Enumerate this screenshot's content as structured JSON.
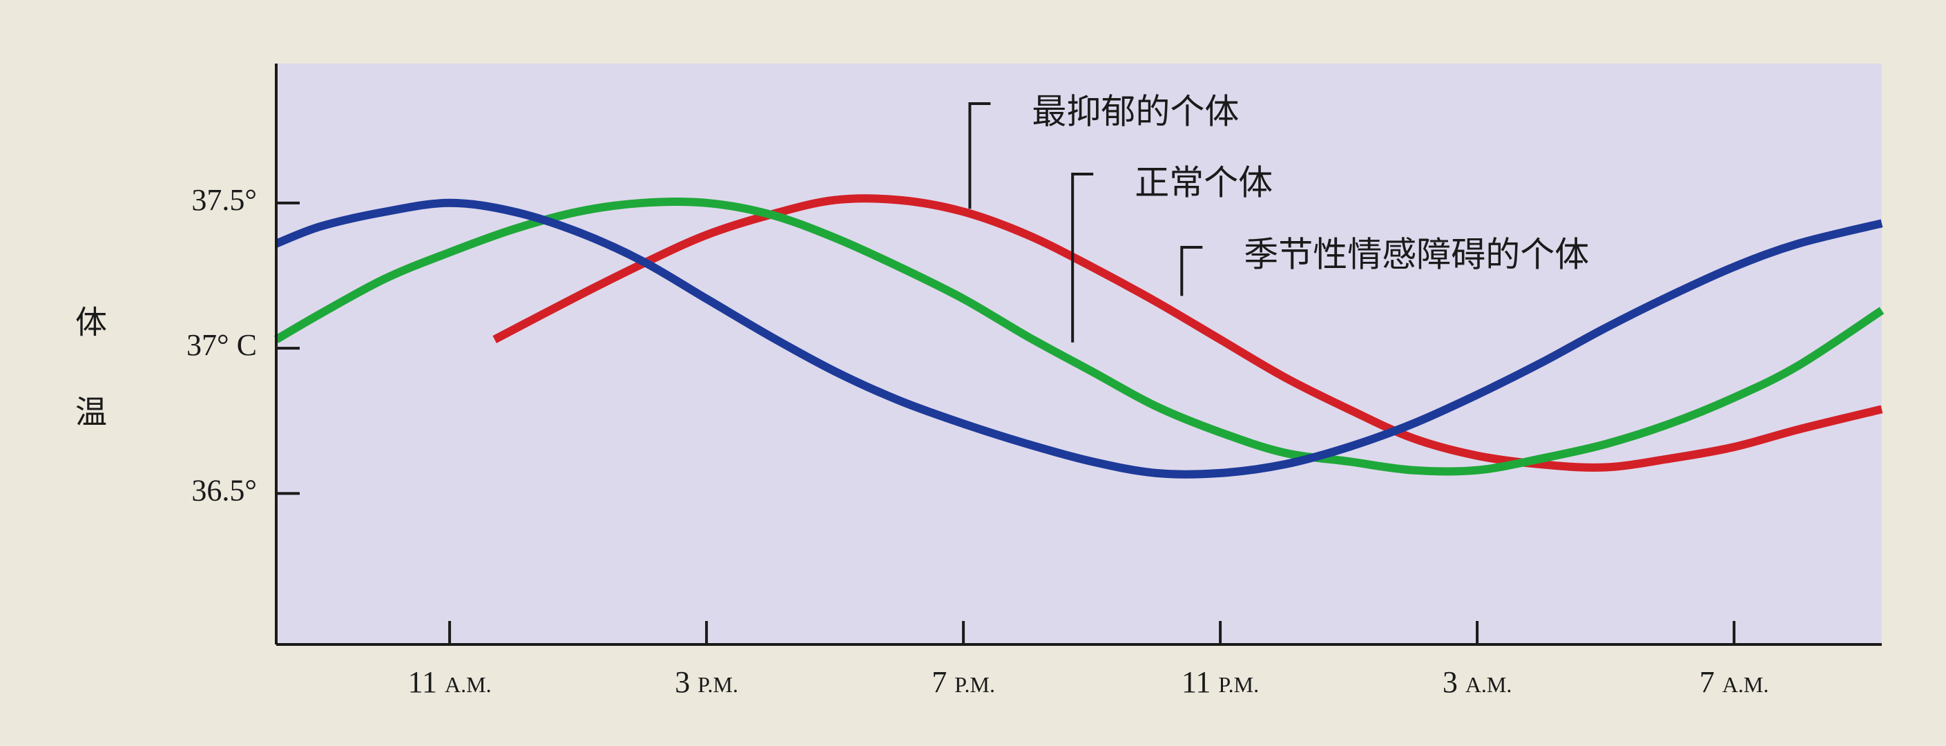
{
  "chart_data": {
    "type": "line",
    "title": "",
    "ylabel": "体温",
    "xlabel": "",
    "x_ticks": [
      {
        "label": "11",
        "suffix": "A.M.",
        "hour": 11
      },
      {
        "label": "3",
        "suffix": "P.M.",
        "hour": 15
      },
      {
        "label": "7",
        "suffix": "P.M.",
        "hour": 19
      },
      {
        "label": "11",
        "suffix": "P.M.",
        "hour": 23
      },
      {
        "label": "3",
        "suffix": "A.M.",
        "hour": 27
      },
      {
        "label": "7",
        "suffix": "A.M.",
        "hour": 31
      }
    ],
    "y_ticks": [
      {
        "label": "37.5°",
        "value": 37.5
      },
      {
        "label": "37° C",
        "value": 37.0
      },
      {
        "label": "36.5°",
        "value": 36.5
      }
    ],
    "xlim": [
      8.3,
      33.3
    ],
    "ylim": [
      35.98,
      37.98
    ],
    "grid": false,
    "series": [
      {
        "name": "最抑郁的个体",
        "color": "#d32027",
        "x": [
          11.7,
          13,
          14,
          15,
          16,
          17,
          18,
          19,
          20,
          21,
          22,
          23,
          24,
          25,
          26,
          27,
          28,
          29,
          30,
          31,
          32,
          33.3
        ],
        "y": [
          37.03,
          37.18,
          37.29,
          37.39,
          37.46,
          37.51,
          37.51,
          37.47,
          37.39,
          37.28,
          37.16,
          37.03,
          36.9,
          36.79,
          36.69,
          36.63,
          36.6,
          36.59,
          36.62,
          36.66,
          36.72,
          36.79
        ]
      },
      {
        "name": "正常个体",
        "color": "#1fa83a",
        "x": [
          8.3,
          9,
          10,
          11,
          12,
          13,
          14,
          15,
          16,
          17,
          18,
          19,
          20,
          21,
          22,
          23,
          24,
          25,
          26,
          27,
          28,
          29,
          30,
          31,
          32,
          33.3
        ],
        "y": [
          37.03,
          37.12,
          37.24,
          37.33,
          37.41,
          37.47,
          37.5,
          37.5,
          37.46,
          37.38,
          37.28,
          37.17,
          37.04,
          36.92,
          36.8,
          36.71,
          36.64,
          36.61,
          36.58,
          36.58,
          36.62,
          36.67,
          36.74,
          36.83,
          36.94,
          37.13
        ]
      },
      {
        "name": "季节性情感障碍的个体",
        "color": "#1d3a99",
        "x": [
          8.3,
          9,
          10,
          11,
          12,
          13,
          14,
          15,
          16,
          17,
          18,
          19,
          20,
          21,
          22,
          23,
          24,
          25,
          26,
          27,
          28,
          29,
          30,
          31,
          32,
          33.3
        ],
        "y": [
          37.36,
          37.42,
          37.47,
          37.5,
          37.47,
          37.4,
          37.3,
          37.17,
          37.04,
          36.92,
          36.82,
          36.74,
          36.67,
          36.61,
          36.57,
          36.57,
          36.6,
          36.66,
          36.74,
          36.84,
          36.95,
          37.07,
          37.18,
          37.28,
          37.36,
          37.43
        ]
      }
    ],
    "annotations": [
      {
        "text": "最抑郁的个体",
        "series": 0,
        "x": 19.1,
        "y": 37.48
      },
      {
        "text": "正常个体",
        "series": 1,
        "x": 20.7,
        "y": 37.02
      },
      {
        "text": "季节性情感障碍的个体",
        "series": 2,
        "x": 22.4,
        "y": 37.18
      }
    ],
    "colors": {
      "plot_background": "#ddd9ec",
      "axis": "#1a1a1a"
    }
  }
}
